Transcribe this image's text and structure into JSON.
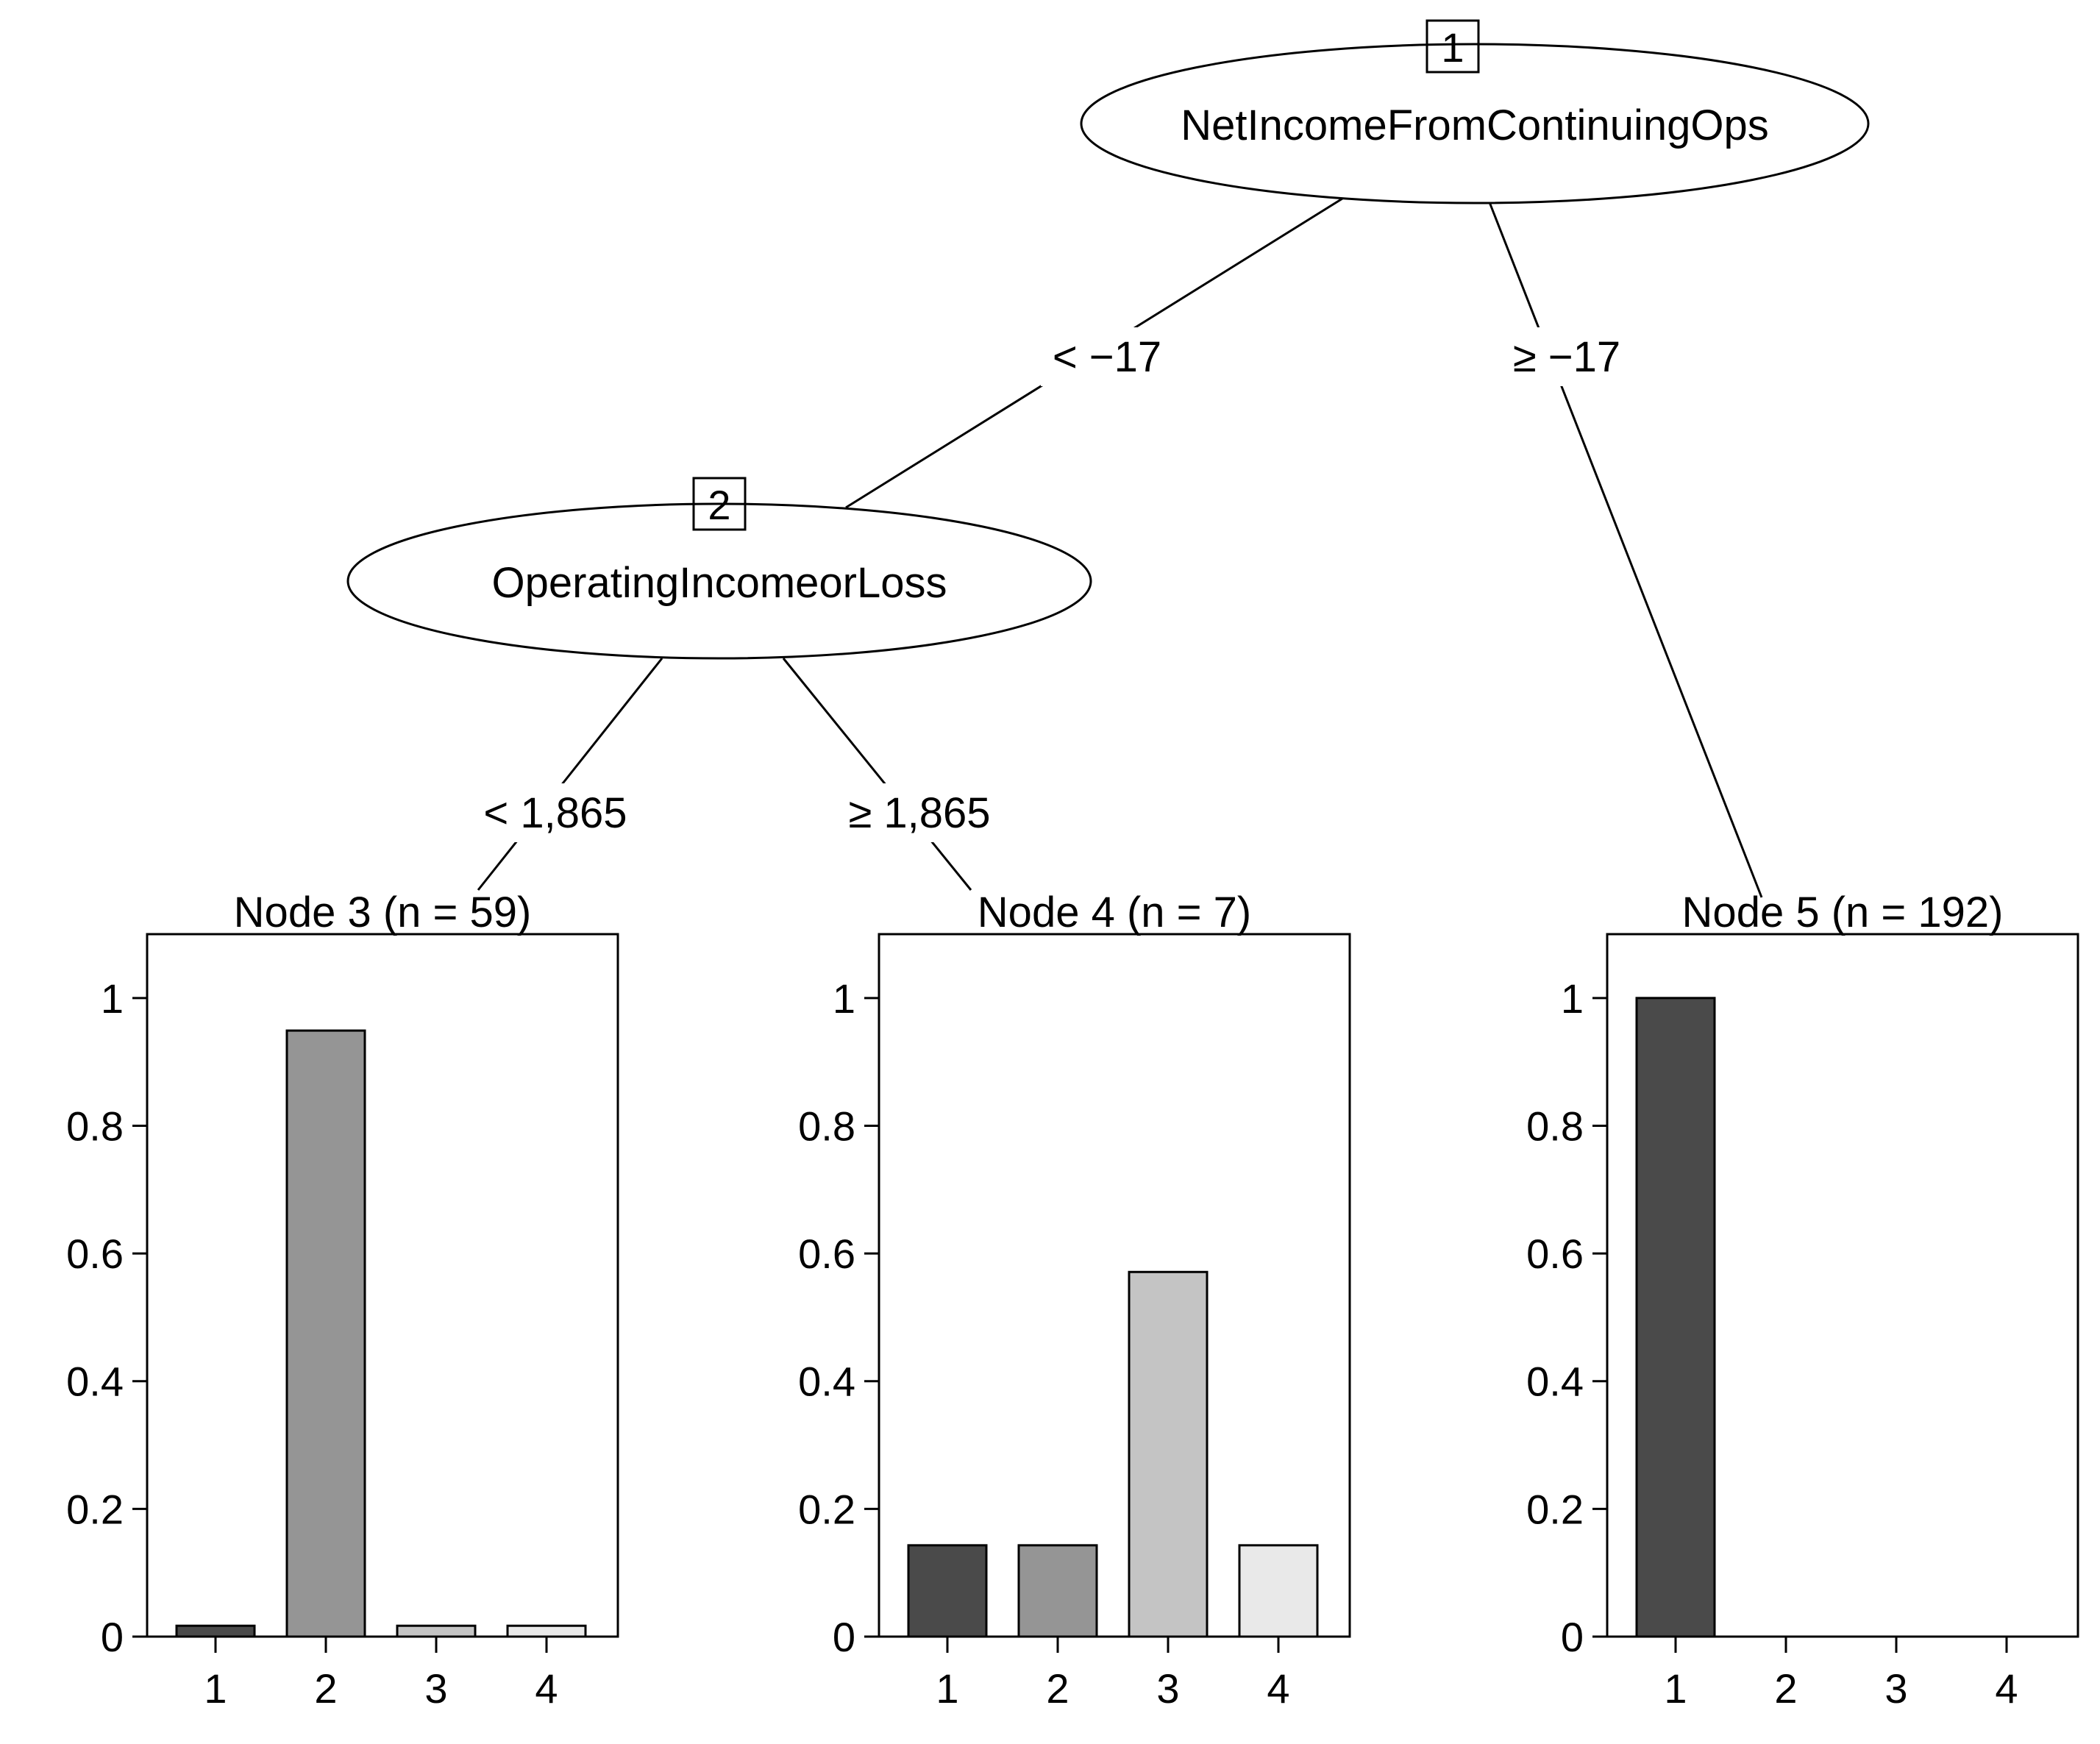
{
  "tree": {
    "inner_nodes": [
      {
        "id": "1",
        "variable": "NetIncomeFromContinuingOps"
      },
      {
        "id": "2",
        "variable": "OperatingIncomeorLoss"
      }
    ],
    "edges": [
      {
        "from": "1",
        "to": "2",
        "label": "< −17"
      },
      {
        "from": "1",
        "to": "5",
        "label": "≥ −17"
      },
      {
        "from": "2",
        "to": "3",
        "label": "< 1,865"
      },
      {
        "from": "2",
        "to": "4",
        "label": "≥ 1,865"
      }
    ]
  },
  "chart_data": [
    {
      "type": "bar",
      "title": "Node 3 (n = 59)",
      "categories": [
        "1",
        "2",
        "3",
        "4"
      ],
      "values": [
        0.017,
        0.949,
        0.017,
        0.017
      ],
      "ylim": [
        0,
        1.1
      ],
      "yticks": [
        "0",
        "0.2",
        "0.4",
        "0.6",
        "0.8",
        "1"
      ]
    },
    {
      "type": "bar",
      "title": "Node 4 (n = 7)",
      "categories": [
        "1",
        "2",
        "3",
        "4"
      ],
      "values": [
        0.143,
        0.143,
        0.571,
        0.143
      ],
      "ylim": [
        0,
        1.1
      ],
      "yticks": [
        "0",
        "0.2",
        "0.4",
        "0.6",
        "0.8",
        "1"
      ]
    },
    {
      "type": "bar",
      "title": "Node 5 (n = 192)",
      "categories": [
        "1",
        "2",
        "3",
        "4"
      ],
      "values": [
        1.0,
        0,
        0,
        0
      ],
      "ylim": [
        0,
        1.1
      ],
      "yticks": [
        "0",
        "0.2",
        "0.4",
        "0.6",
        "0.8",
        "1"
      ]
    }
  ],
  "colors": {
    "class_fills": [
      "#4a4a4a",
      "#959595",
      "#c4c4c4",
      "#e9e9e9"
    ],
    "stroke": "#000000",
    "background": "#ffffff"
  }
}
